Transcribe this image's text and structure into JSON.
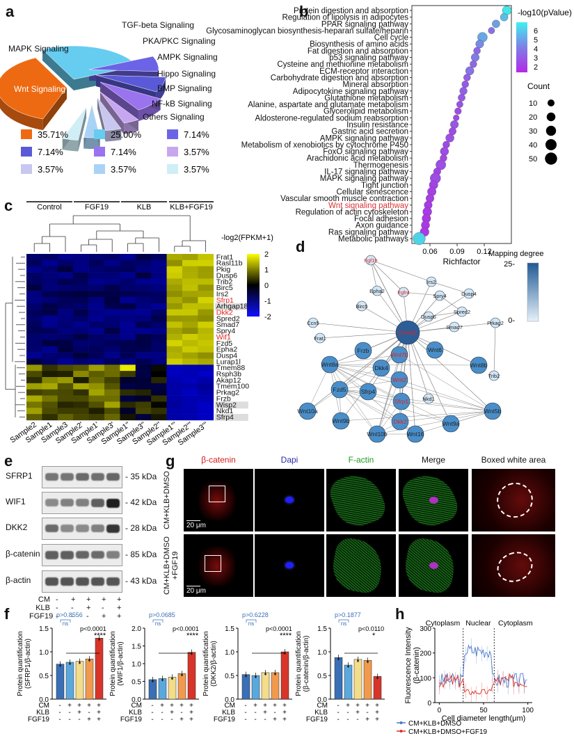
{
  "panel_labels": {
    "a": "a",
    "b": "b",
    "c": "c",
    "d": "d",
    "e": "e",
    "f": "f",
    "g": "g",
    "h": "h"
  },
  "panel_a": {
    "chart_data": {
      "type": "pie",
      "slices": [
        {
          "label": "Wnt Signaling",
          "value": 35.71,
          "color": "#ee6a12"
        },
        {
          "label": "MAPK Signaling",
          "value": 25.0,
          "color": "#66ccf0"
        },
        {
          "label": "TGF-beta Signaling",
          "value": 7.14,
          "color": "#6b64e6"
        },
        {
          "label": "PKA/PKC Signaling",
          "value": 7.14,
          "color": "#5a5ad9"
        },
        {
          "label": "AMPK Signaling",
          "value": 7.14,
          "color": "#9a73ee"
        },
        {
          "label": "Hippo Signaling",
          "value": 3.57,
          "color": "#c7a6f0"
        },
        {
          "label": "BMP Signaling",
          "value": 3.57,
          "color": "#c7c7ef"
        },
        {
          "label": "NF-kB Signaling",
          "value": 3.57,
          "color": "#a9d3f6"
        },
        {
          "label": "Others Signaling",
          "value": 3.57,
          "color": "#cfeef6"
        }
      ]
    },
    "legend": [
      "35.71%",
      "25.00%",
      "7.14%",
      "7.14%",
      "7.14%",
      "3.57%",
      "3.57%",
      "3.57%",
      "3.57%"
    ]
  },
  "panel_b": {
    "chart_data": {
      "type": "scatter",
      "xlabel": "Richfactor",
      "xticks": [
        "0.06",
        "0.09",
        "0.12"
      ],
      "xlim": [
        0.04,
        0.15
      ],
      "color_label": "-log10(pValue)",
      "color_ticks": [
        "6",
        "5",
        "4",
        "3",
        "2"
      ],
      "size_label": "Count",
      "size_ticks": [
        "10",
        "20",
        "30",
        "40",
        "50"
      ],
      "highlight": "Wnt signaling pathway",
      "points": [
        {
          "term": "Protein digestion and absorption",
          "x": 0.145,
          "count": 22,
          "p": 6.8
        },
        {
          "term": "Regulation of lipolysis in adipocytes",
          "x": 0.142,
          "count": 14,
          "p": 5.6
        },
        {
          "term": "PPAR signaling pathway",
          "x": 0.133,
          "count": 14,
          "p": 4.8
        },
        {
          "term": "Glycosaminoglycan biosynthesis-heparan sulfate/heparin",
          "x": 0.128,
          "count": 8,
          "p": 3.5
        },
        {
          "term": "Cell cycle",
          "x": 0.118,
          "count": 28,
          "p": 5.0
        },
        {
          "term": "Biosynthesis of amino acids",
          "x": 0.115,
          "count": 16,
          "p": 4.2
        },
        {
          "term": "Fat digestion and absorption",
          "x": 0.112,
          "count": 10,
          "p": 3.3
        },
        {
          "term": "p53 signaling pathway",
          "x": 0.11,
          "count": 16,
          "p": 3.8
        },
        {
          "term": "Cysteine and methionine metabolism",
          "x": 0.108,
          "count": 10,
          "p": 3.2
        },
        {
          "term": "ECM-receptor interaction",
          "x": 0.104,
          "count": 18,
          "p": 3.6
        },
        {
          "term": "Carbohydrate digestion and absorption",
          "x": 0.101,
          "count": 10,
          "p": 3.0
        },
        {
          "term": "Mineral absorption",
          "x": 0.099,
          "count": 10,
          "p": 2.9
        },
        {
          "term": "Adipocytokine signaling pathway",
          "x": 0.097,
          "count": 13,
          "p": 3.0
        },
        {
          "term": "Glutathione metabolism",
          "x": 0.095,
          "count": 11,
          "p": 2.8
        },
        {
          "term": "Alanine, aspartate and glutamate metabolism",
          "x": 0.093,
          "count": 8,
          "p": 2.6
        },
        {
          "term": "Glycerolipid metabolism",
          "x": 0.091,
          "count": 9,
          "p": 2.5
        },
        {
          "term": "Aldosterone-regulated sodium reabsorption",
          "x": 0.089,
          "count": 6,
          "p": 2.4
        },
        {
          "term": "Insulin resistance",
          "x": 0.087,
          "count": 16,
          "p": 2.7
        },
        {
          "term": "Gastric acid secretion",
          "x": 0.085,
          "count": 12,
          "p": 2.5
        },
        {
          "term": "AMPK signaling pathway",
          "x": 0.082,
          "count": 18,
          "p": 2.6
        },
        {
          "term": "Metabolism of xenobiotics by cytochrome P450",
          "x": 0.078,
          "count": 10,
          "p": 2.4
        },
        {
          "term": "FoxO signaling pathway",
          "x": 0.076,
          "count": 18,
          "p": 2.5
        },
        {
          "term": "Arachidonic acid metabolism",
          "x": 0.075,
          "count": 10,
          "p": 2.3
        },
        {
          "term": "Thermogenesis",
          "x": 0.072,
          "count": 30,
          "p": 2.6
        },
        {
          "term": "IL-17 signaling pathway",
          "x": 0.068,
          "count": 12,
          "p": 2.2
        },
        {
          "term": "MAPK signaling pathway",
          "x": 0.066,
          "count": 34,
          "p": 2.5
        },
        {
          "term": "Tight junction",
          "x": 0.064,
          "count": 20,
          "p": 2.2
        },
        {
          "term": "Cellular senescence",
          "x": 0.062,
          "count": 20,
          "p": 2.2
        },
        {
          "term": "Vascular smooth muscle contraction",
          "x": 0.06,
          "count": 16,
          "p": 2.1
        },
        {
          "term": "Wnt signaling pathway",
          "x": 0.058,
          "count": 16,
          "p": 2.0
        },
        {
          "term": "Regulation of actin cytoskeleton",
          "x": 0.057,
          "count": 22,
          "p": 2.0
        },
        {
          "term": "Focal adhesion",
          "x": 0.056,
          "count": 20,
          "p": 1.9
        },
        {
          "term": "Axon guidance",
          "x": 0.055,
          "count": 18,
          "p": 1.9
        },
        {
          "term": "Ras signaling pathway",
          "x": 0.054,
          "count": 22,
          "p": 1.9
        },
        {
          "term": "Metabolic pathways",
          "x": 0.048,
          "count": 52,
          "p": 6.2
        }
      ]
    }
  },
  "panel_c": {
    "chart_data": {
      "type": "heatmap",
      "title": "-log2(FPKM+1)",
      "color_ticks": [
        "2",
        "1",
        "0",
        "-1",
        "-2"
      ],
      "groups": [
        "Control",
        "FGF19",
        "KLB",
        "KLB+FGF19"
      ],
      "samples": [
        "Sample2",
        "Sample1",
        "Sample3",
        "Sample2'",
        "Sample1'",
        "Sample3'",
        "Sample1''",
        "Sample3''",
        "Sample2''",
        "Sample1'''",
        "Sample2'''",
        "Sample3'''"
      ],
      "genes": [
        "Frat1",
        "Rasl11b",
        "Pkig",
        "Dusp6",
        "Trib2",
        "Birc5",
        "Irs2",
        "Sfrp1",
        "Arhgap18",
        "Dkk2",
        "Spred2",
        "Smad7",
        "Spry4",
        "Wif1",
        "Fzd5",
        "Epha2",
        "Dusp4",
        "Lurap1l",
        "Tmem88",
        "Rsph3b",
        "Akap12",
        "Tmem100",
        "Prkag2",
        "Frzb",
        "Wisp2",
        "Nkd1",
        "Sfrp4"
      ],
      "red_genes": [
        "Sfrp1",
        "Dkk2",
        "Wif1"
      ],
      "shaded_genes": [
        "Arhgap18",
        "Wisp2",
        "Sfrp4"
      ]
    }
  },
  "panel_d": {
    "title": "Mapping degree",
    "scale_max": "25-",
    "scale_min": "0-",
    "nodes": [
      "Fgf19",
      "Irs2",
      "Epha2",
      "Fgfr4",
      "Spry4",
      "Dusp4",
      "Birc5",
      "Spred2",
      "Ccn5",
      "Dusp6",
      "Frat1",
      "Ctnnb1",
      "Smad7",
      "Prkag2",
      "Frzb",
      "Wnt6",
      "Wnt8a",
      "Dkk4",
      "Wnt8b",
      "Trib2",
      "Fzd5",
      "Sfrp4",
      "Nkd1",
      "Wnt10a",
      "Wnt5b",
      "Wnt9b",
      "Wnt9a",
      "Wnt10b",
      "Wnt16",
      "Wnt7b",
      "Wnt2",
      "Sfrp1",
      "Dkk2"
    ]
  },
  "panel_e": {
    "rows": [
      {
        "name": "SFRP1",
        "kda": "- 35 kDa"
      },
      {
        "name": "WIF1",
        "kda": "- 42 kDa"
      },
      {
        "name": "DKK2",
        "kda": "- 28 kDa"
      },
      {
        "name": "β-catenin",
        "kda": "- 85 kDa"
      },
      {
        "name": "β-actin",
        "kda": "- 43 kDa"
      }
    ],
    "conditions": {
      "labels": [
        "CM",
        "KLB",
        "FGF19"
      ],
      "signs": [
        [
          "-",
          "+",
          "+",
          "+",
          "+"
        ],
        [
          "-",
          "-",
          "+",
          "-",
          "+"
        ],
        [
          "-",
          "-",
          "-",
          "+",
          "+"
        ]
      ]
    }
  },
  "panel_g": {
    "columns": [
      "β-catenin",
      "Dapi",
      "F-actin",
      "Merge",
      "Boxed white area"
    ],
    "rows": [
      "CM+KLB+DMSO",
      "CM+KLB+DMSO +FGF19"
    ],
    "scalebar": "20 μm"
  },
  "panel_f": {
    "charts": [
      {
        "type": "bar",
        "ylabel": "Protein quantification (SFRP1/β-actin)",
        "yticks": [
          "0.0",
          "0.5",
          "1.0",
          "1.5"
        ],
        "ylim": [
          0,
          1.5
        ],
        "values": [
          0.74,
          0.78,
          0.8,
          0.85,
          1.29
        ],
        "p1": "p>0.8556",
        "p2": "p<0.0001",
        "ns": "ns",
        "stars": "****"
      },
      {
        "type": "bar",
        "ylabel": "Protein quantification (WIF1/β-actin)",
        "yticks": [
          "0.0",
          "0.5",
          "1.0",
          "1.5",
          "2.0"
        ],
        "ylim": [
          0,
          2.0
        ],
        "values": [
          0.55,
          0.58,
          0.62,
          0.72,
          1.32
        ],
        "p1": "p>0.0685",
        "p2": "p<0.0001",
        "ns": "ns",
        "stars": "****"
      },
      {
        "type": "bar",
        "ylabel": "Protein quantification (DKK2/β-actin)",
        "yticks": [
          "0.0",
          "0.5",
          "1.0",
          "1.5"
        ],
        "ylim": [
          0,
          1.5
        ],
        "values": [
          0.52,
          0.5,
          0.56,
          0.56,
          1.0
        ],
        "p1": "p>0.6228",
        "p2": "p<0.0001",
        "ns": "ns",
        "stars": "****"
      },
      {
        "type": "bar",
        "ylabel": "Protein quantification (β-catenin/β-actin)",
        "yticks": [
          "0.0",
          "0.5",
          "1.0",
          "1.5"
        ],
        "ylim": [
          0,
          1.5
        ],
        "values": [
          0.88,
          0.72,
          0.84,
          0.82,
          0.48
        ],
        "p1": "p>0.1877",
        "p2": "p<0.0110",
        "ns": "ns",
        "stars": "*"
      }
    ],
    "colors": [
      "#3a6fb5",
      "#5ba8dc",
      "#f3dc8a",
      "#f19a4d",
      "#d7352a"
    ],
    "cond_labels": [
      "CM",
      "KLB",
      "FGF19"
    ],
    "cond_signs": [
      [
        "-",
        "+",
        "+",
        "+",
        "+"
      ],
      [
        "-",
        "-",
        "+",
        "-",
        "+"
      ],
      [
        "-",
        "-",
        "-",
        "+",
        "+"
      ]
    ]
  },
  "panel_h": {
    "chart_data": {
      "type": "line",
      "ylabel": "Fluorescence Intensity (β-catenin)",
      "xlabel": "Cell diameter length(μm)",
      "xticks": [
        "0",
        "50",
        "100"
      ],
      "yticks": [
        "0",
        "100",
        "200",
        "300"
      ],
      "xlim": [
        -5,
        105
      ],
      "ylim": [
        0,
        300
      ],
      "regions": [
        "Cytoplasm",
        "Nuclear",
        "Cytoplasm"
      ],
      "series": [
        {
          "name": "CM+KLB+DMSO",
          "color": "#4a78c8"
        },
        {
          "name": "CM+KLB+DMSO+FGF19",
          "color": "#d9332b"
        }
      ]
    }
  }
}
